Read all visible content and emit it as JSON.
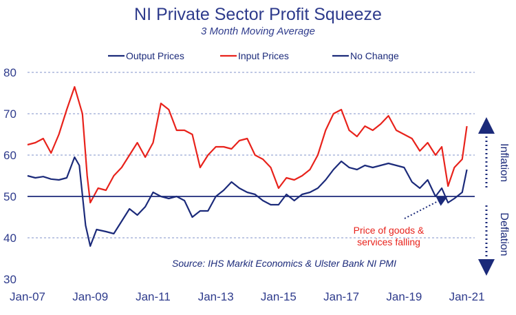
{
  "chart_data": {
    "type": "line",
    "title": "NI Private Sector Profit Squeeze",
    "subtitle": "3 Month Moving Average",
    "xlabel": "",
    "ylabel": "",
    "xlim": [
      2007.0,
      2021.25
    ],
    "ylim": [
      30,
      80
    ],
    "yticks": [
      30,
      40,
      50,
      60,
      70,
      80
    ],
    "xticks": [
      {
        "label": "Jan-07",
        "value": 2007
      },
      {
        "label": "Jan-09",
        "value": 2009
      },
      {
        "label": "Jan-11",
        "value": 2011
      },
      {
        "label": "Jan-13",
        "value": 2013
      },
      {
        "label": "Jan-15",
        "value": 2015
      },
      {
        "label": "Jan-17",
        "value": 2017
      },
      {
        "label": "Jan-19",
        "value": 2019
      },
      {
        "label": "Jan-21",
        "value": 2021
      }
    ],
    "grid": true,
    "legend_position": "top",
    "series": [
      {
        "name": "Output Prices",
        "color": "#1b2a7a",
        "x": [
          2007.0,
          2007.25,
          2007.5,
          2007.75,
          2008.0,
          2008.25,
          2008.5,
          2008.65,
          2008.85,
          2009.0,
          2009.2,
          2009.5,
          2009.75,
          2010.0,
          2010.25,
          2010.5,
          2010.75,
          2011.0,
          2011.25,
          2011.5,
          2011.75,
          2012.0,
          2012.25,
          2012.5,
          2012.75,
          2013.0,
          2013.25,
          2013.5,
          2013.75,
          2014.0,
          2014.25,
          2014.5,
          2014.75,
          2015.0,
          2015.25,
          2015.5,
          2015.75,
          2016.0,
          2016.25,
          2016.5,
          2016.75,
          2017.0,
          2017.25,
          2017.5,
          2017.75,
          2018.0,
          2018.25,
          2018.5,
          2018.75,
          2019.0,
          2019.25,
          2019.5,
          2019.75,
          2020.0,
          2020.2,
          2020.4,
          2020.6,
          2020.85,
          2021.0
        ],
        "values": [
          55.0,
          54.5,
          54.8,
          54.2,
          54.0,
          54.5,
          59.5,
          57.5,
          43.0,
          38.0,
          42.0,
          41.5,
          41.0,
          44.0,
          47.0,
          45.5,
          47.5,
          51.0,
          50.0,
          49.5,
          50.0,
          49.0,
          45.0,
          46.5,
          46.5,
          50.0,
          51.5,
          53.5,
          52.0,
          51.0,
          50.5,
          49.0,
          48.0,
          48.0,
          50.5,
          49.0,
          50.5,
          51.0,
          52.0,
          54.0,
          56.5,
          58.5,
          57.0,
          56.5,
          57.5,
          57.0,
          57.5,
          58.0,
          57.5,
          57.0,
          53.5,
          52.0,
          54.0,
          50.0,
          52.0,
          48.5,
          49.5,
          51.0,
          56.5
        ]
      },
      {
        "name": "Input Prices",
        "color": "#e8221b",
        "x": [
          2007.0,
          2007.25,
          2007.5,
          2007.75,
          2008.0,
          2008.25,
          2008.5,
          2008.75,
          2008.9,
          2009.0,
          2009.25,
          2009.5,
          2009.75,
          2010.0,
          2010.25,
          2010.5,
          2010.75,
          2011.0,
          2011.25,
          2011.5,
          2011.75,
          2012.0,
          2012.25,
          2012.5,
          2012.75,
          2013.0,
          2013.25,
          2013.5,
          2013.75,
          2014.0,
          2014.25,
          2014.5,
          2014.75,
          2015.0,
          2015.25,
          2015.5,
          2015.75,
          2016.0,
          2016.25,
          2016.5,
          2016.75,
          2017.0,
          2017.25,
          2017.5,
          2017.75,
          2018.0,
          2018.25,
          2018.5,
          2018.75,
          2019.0,
          2019.25,
          2019.5,
          2019.75,
          2020.0,
          2020.2,
          2020.4,
          2020.6,
          2020.85,
          2021.0
        ],
        "values": [
          62.5,
          63.0,
          64.0,
          60.5,
          65.0,
          71.0,
          76.5,
          70.0,
          55.0,
          48.5,
          52.0,
          51.5,
          55.0,
          57.0,
          60.0,
          63.0,
          59.5,
          63.0,
          72.5,
          71.0,
          66.0,
          66.0,
          65.0,
          57.0,
          60.0,
          62.0,
          62.0,
          61.5,
          63.5,
          64.0,
          60.0,
          59.0,
          57.0,
          52.0,
          54.5,
          54.0,
          55.0,
          56.5,
          60.0,
          66.0,
          70.0,
          71.0,
          66.0,
          64.5,
          67.0,
          66.0,
          67.5,
          69.5,
          66.0,
          65.0,
          64.0,
          61.0,
          63.0,
          60.0,
          62.0,
          52.5,
          57.0,
          59.0,
          67.0
        ]
      },
      {
        "name": "No Change",
        "color": "#1b2a7a",
        "x": [
          2007.0,
          2021.25
        ],
        "values": [
          50,
          50
        ]
      }
    ],
    "annotations": {
      "source": "Source: IHS Markit Economics & Ulster Bank NI PMI",
      "price_line1": "Price of goods &",
      "price_line2": "services falling",
      "inflation": "Inflation",
      "deflation": "Deflation"
    }
  }
}
